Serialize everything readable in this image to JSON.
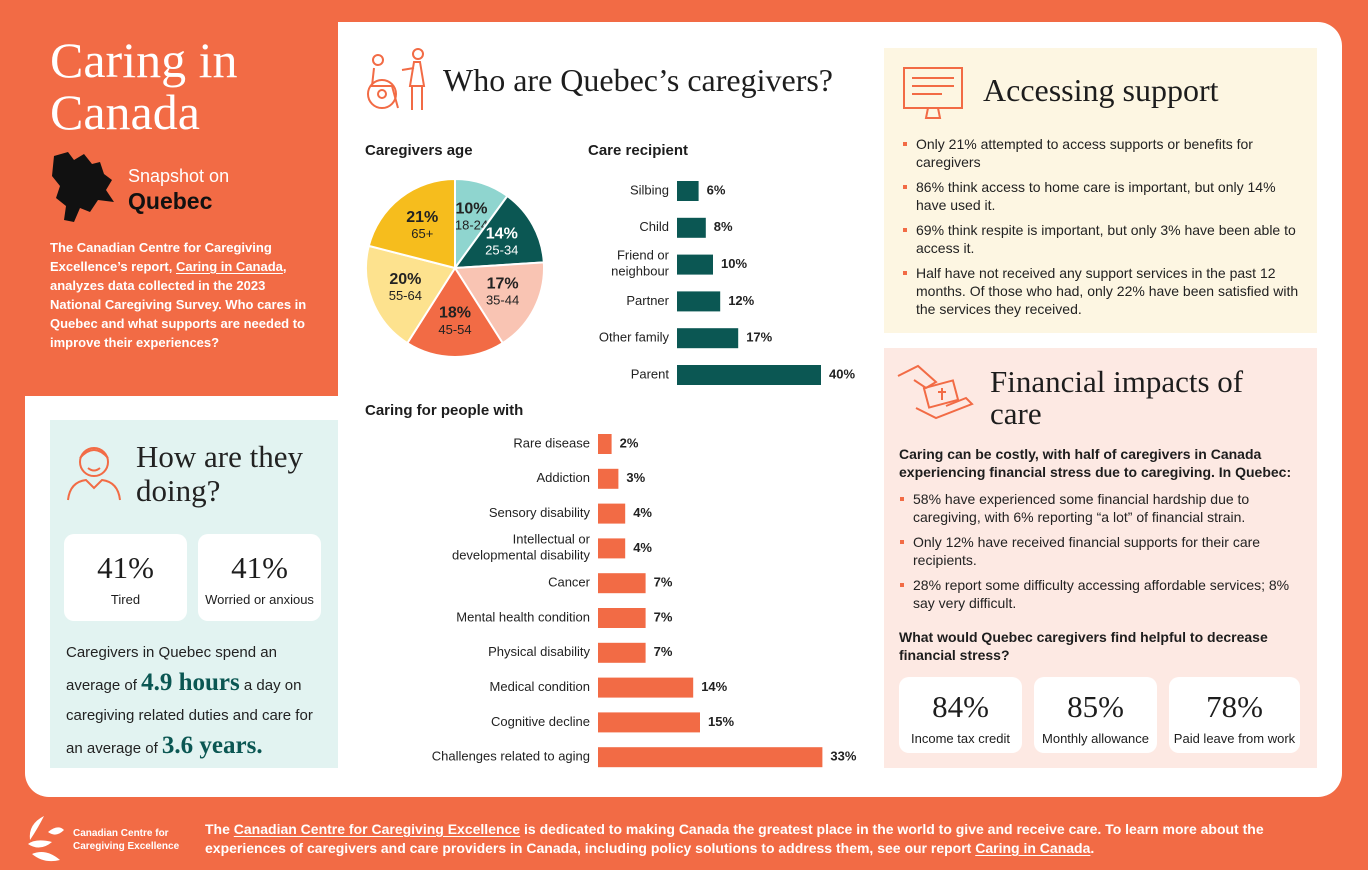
{
  "intro": {
    "title": "Caring in Canada",
    "snapshot": "Snapshot on",
    "province": "Quebec",
    "text_1": "The Canadian Centre for Caregiving Excellence’s report, ",
    "text_link": "Caring in Canada",
    "text_2": ", analyzes data collected in the 2023 National Caregiving Survey. Who cares in Quebec and what supports are needed to improve their experiences?"
  },
  "doing": {
    "title": "How are they doing?",
    "stats": [
      {
        "value": "41%",
        "label": "Tired"
      },
      {
        "value": "41%",
        "label": "Worried or anxious"
      }
    ],
    "text_1": "Caregivers in Quebec spend an average of ",
    "highlight_1": "4.9 hours",
    "text_2": " a day on caregiving related duties and care for an average of ",
    "highlight_2": "3.6 years."
  },
  "who": {
    "title": "Who are Quebec’s caregivers?"
  },
  "chart_data": [
    {
      "type": "pie",
      "title": "Caregivers age",
      "categories": [
        "18-24",
        "25-34",
        "35-44",
        "45-54",
        "55-64",
        "65+"
      ],
      "values": [
        10,
        14,
        17,
        18,
        20,
        21
      ],
      "value_labels": [
        "10%",
        "14%",
        "17%",
        "18%",
        "20%",
        "21%"
      ],
      "colors": [
        "#8fd5cf",
        "#0b5753",
        "#f9c4b3",
        "#f26b45",
        "#fde28e",
        "#f6bd1d"
      ]
    },
    {
      "type": "bar",
      "orientation": "horizontal",
      "title": "Care recipient",
      "categories": [
        "Silbing",
        "Child",
        "Friend or neighbour",
        "Partner",
        "Other family",
        "Parent"
      ],
      "values": [
        6,
        8,
        10,
        12,
        17,
        40
      ],
      "value_labels": [
        "6%",
        "8%",
        "10%",
        "12%",
        "17%",
        "40%"
      ],
      "color": "#0b5753"
    },
    {
      "type": "bar",
      "orientation": "horizontal",
      "title": "Caring for people with",
      "categories": [
        "Rare disease",
        "Addiction",
        "Sensory disability",
        "Intellectual or developmental disability",
        "Cancer",
        "Mental health condition",
        "Physical disability",
        "Medical condition",
        "Cognitive decline",
        "Challenges related to aging"
      ],
      "values": [
        2,
        3,
        4,
        4,
        7,
        7,
        7,
        14,
        15,
        33
      ],
      "value_labels": [
        "2%",
        "3%",
        "4%",
        "4%",
        "7%",
        "7%",
        "7%",
        "14%",
        "15%",
        "33%"
      ],
      "color": "#f26b45"
    }
  ],
  "support": {
    "title": "Accessing support",
    "bullets": [
      "Only 21% attempted to access supports or benefits for caregivers",
      "86% think access to home care is important, but only 14% have used it.",
      "69% think respite is important, but only 3% have been able to access it.",
      "Half have not received any support services in the past 12 months. Of those who had, only 22% have been satisfied with the services they received."
    ]
  },
  "financial": {
    "title": "Financial impacts of care",
    "intro": "Caring can be costly, with half of caregivers in Canada experiencing financial stress due to caregiving. In Quebec:",
    "bullets": [
      "58% have experienced some financial hardship due to caregiving, with 6% reporting “a lot” of financial strain.",
      "Only 12% have received financial supports for their care recipients.",
      "28% report some difficulty accessing affordable services; 8% say very difficult."
    ],
    "question": "What would Quebec caregivers find helpful to decrease financial stress?",
    "stats": [
      {
        "value": "84%",
        "label": "Income tax credit"
      },
      {
        "value": "85%",
        "label": "Monthly allowance"
      },
      {
        "value": "78%",
        "label": "Paid leave from work"
      }
    ]
  },
  "footer": {
    "org_1": "Canadian Centre for",
    "org_2": "Caregiving Excellence",
    "text_1": "The ",
    "link_1": "Canadian Centre for Caregiving Excellence",
    "text_2": " is dedicated to making Canada the greatest place in the world to give and receive care. To learn more about the experiences of caregivers and care providers in Canada, including policy solutions to address them, see our report ",
    "link_2": "Caring in Canada",
    "text_3": "."
  }
}
